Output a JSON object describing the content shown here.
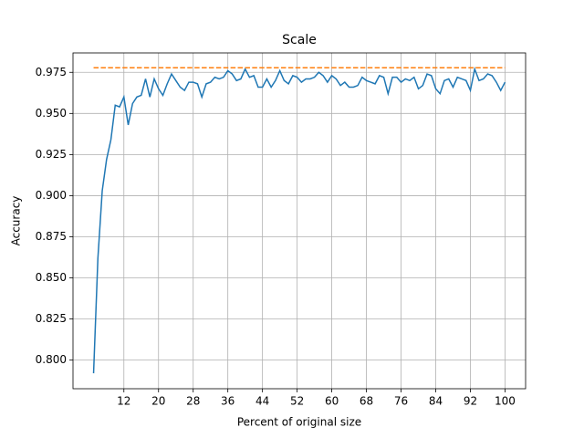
{
  "chart_data": {
    "type": "line",
    "title": "Scale",
    "x_label": "Percent of original size",
    "y_label": "Accuracy",
    "x": [
      5,
      6,
      7,
      8,
      9,
      10,
      11,
      12,
      13,
      14,
      15,
      16,
      17,
      18,
      19,
      20,
      21,
      22,
      23,
      24,
      25,
      26,
      27,
      28,
      29,
      30,
      31,
      32,
      33,
      34,
      35,
      36,
      37,
      38,
      39,
      40,
      41,
      42,
      43,
      44,
      45,
      46,
      47,
      48,
      49,
      50,
      51,
      52,
      53,
      54,
      55,
      56,
      57,
      58,
      59,
      60,
      61,
      62,
      63,
      64,
      65,
      66,
      67,
      68,
      69,
      70,
      71,
      72,
      73,
      74,
      75,
      76,
      77,
      78,
      79,
      80,
      81,
      82,
      83,
      84,
      85,
      86,
      87,
      88,
      89,
      90,
      91,
      92,
      93,
      94,
      95,
      96,
      97,
      98,
      99,
      100
    ],
    "series": [
      {
        "color": "#1f77b4",
        "style": "solid",
        "values": [
          0.792,
          0.862,
          0.903,
          0.922,
          0.934,
          0.955,
          0.954,
          0.96,
          0.943,
          0.956,
          0.96,
          0.961,
          0.971,
          0.96,
          0.971,
          0.965,
          0.961,
          0.968,
          0.974,
          0.97,
          0.966,
          0.964,
          0.969,
          0.969,
          0.968,
          0.96,
          0.968,
          0.969,
          0.972,
          0.971,
          0.972,
          0.976,
          0.974,
          0.97,
          0.971,
          0.977,
          0.972,
          0.973,
          0.966,
          0.966,
          0.971,
          0.966,
          0.97,
          0.976,
          0.97,
          0.968,
          0.973,
          0.972,
          0.969,
          0.971,
          0.971,
          0.972,
          0.975,
          0.973,
          0.969,
          0.973,
          0.971,
          0.967,
          0.969,
          0.966,
          0.966,
          0.967,
          0.972,
          0.97,
          0.969,
          0.968,
          0.973,
          0.972,
          0.962,
          0.972,
          0.972,
          0.969,
          0.971,
          0.97,
          0.972,
          0.965,
          0.967,
          0.974,
          0.973,
          0.965,
          0.962,
          0.97,
          0.971,
          0.966,
          0.972,
          0.971,
          0.97,
          0.964,
          0.977,
          0.97,
          0.971,
          0.974,
          0.973,
          0.969,
          0.964,
          0.969
        ]
      },
      {
        "color": "#ff7f0e",
        "style": "dashed",
        "x": [
          5,
          100
        ],
        "values": [
          0.9778,
          0.9778
        ]
      }
    ],
    "xlim": [
      0.25,
      104.75
    ],
    "xticks": [
      12,
      20,
      28,
      36,
      44,
      52,
      60,
      68,
      76,
      84,
      92,
      100
    ],
    "ylim": [
      0.7826,
      0.9868
    ],
    "yticks": [
      {
        "value": 0.8,
        "label": "0.800"
      },
      0.825,
      {
        "value": 0.85,
        "label": "0.850"
      },
      0.875,
      {
        "value": 0.9,
        "label": "0.900"
      },
      0.925,
      {
        "value": 0.95,
        "label": "0.950"
      },
      0.975
    ],
    "grid": true
  }
}
